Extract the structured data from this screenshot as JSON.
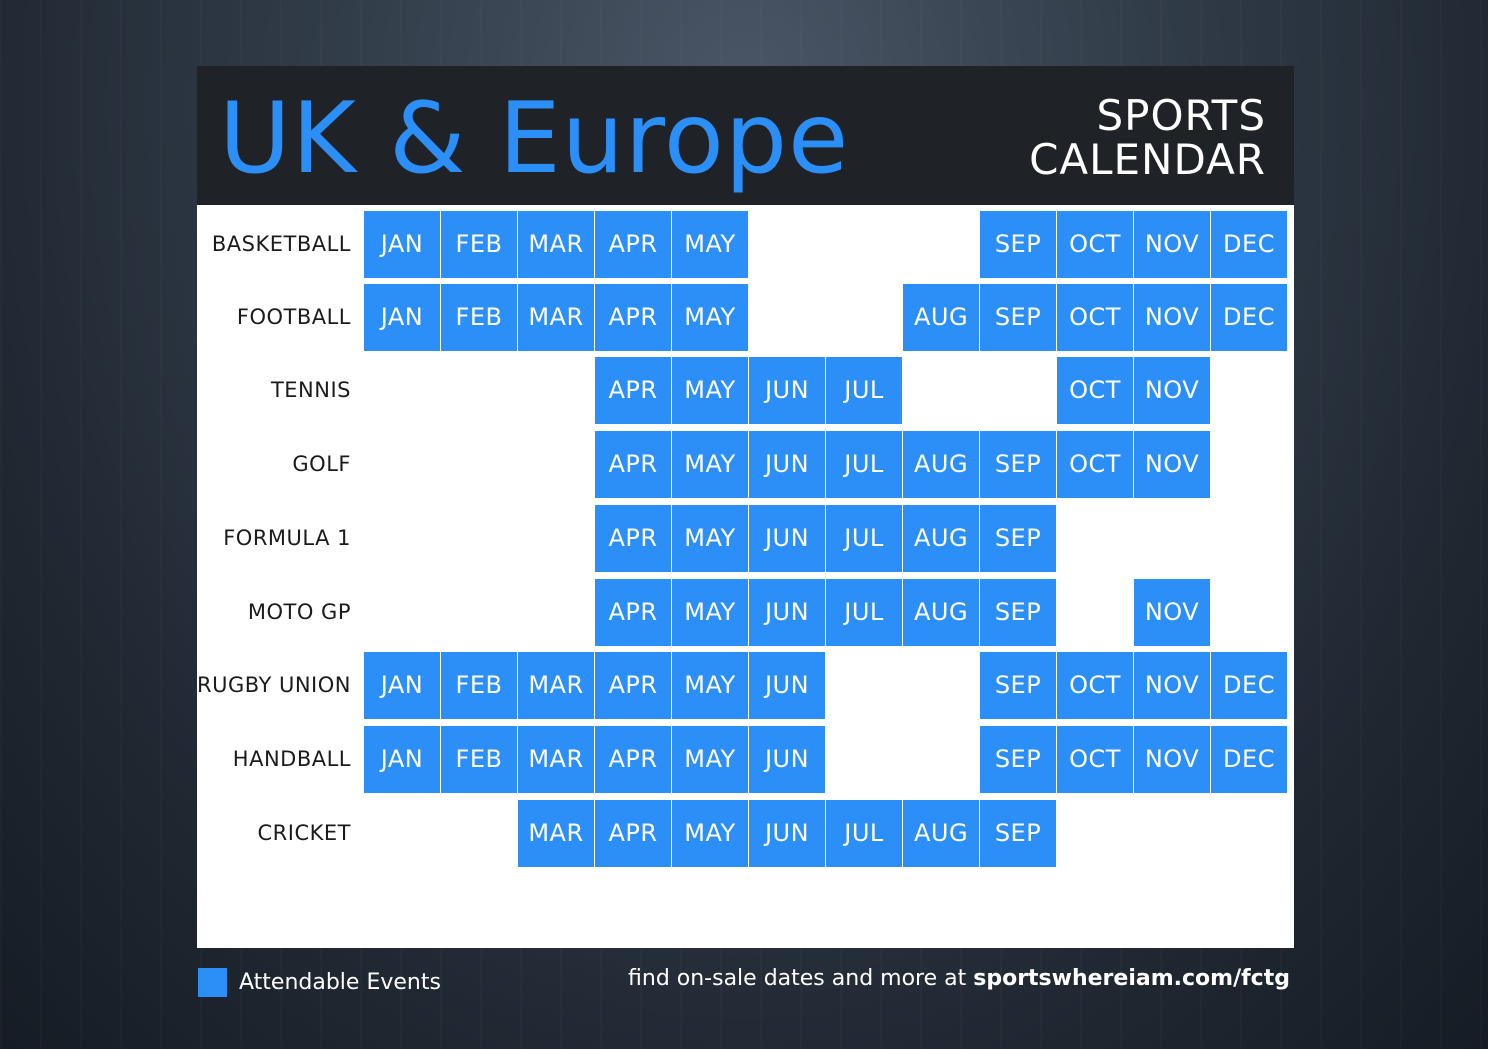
{
  "header": {
    "title": "UK & Europe",
    "subtitle_line1": "SPORTS",
    "subtitle_line2": "CALENDAR"
  },
  "months": [
    "JAN",
    "FEB",
    "MAR",
    "APR",
    "MAY",
    "JUN",
    "JUL",
    "AUG",
    "SEP",
    "OCT",
    "NOV",
    "DEC"
  ],
  "colors": {
    "accent": "#2b8ff7",
    "header_bg": "#1f2227"
  },
  "sports": [
    {
      "name": "BASKETBALL",
      "months": [
        "JAN",
        "FEB",
        "MAR",
        "APR",
        "MAY",
        "SEP",
        "OCT",
        "NOV",
        "DEC"
      ]
    },
    {
      "name": "FOOTBALL",
      "months": [
        "JAN",
        "FEB",
        "MAR",
        "APR",
        "MAY",
        "AUG",
        "SEP",
        "OCT",
        "NOV",
        "DEC"
      ]
    },
    {
      "name": "TENNIS",
      "months": [
        "APR",
        "MAY",
        "JUN",
        "JUL",
        "OCT",
        "NOV"
      ]
    },
    {
      "name": "GOLF",
      "months": [
        "APR",
        "MAY",
        "JUN",
        "JUL",
        "AUG",
        "SEP",
        "OCT",
        "NOV"
      ]
    },
    {
      "name": "FORMULA 1",
      "months": [
        "APR",
        "MAY",
        "JUN",
        "JUL",
        "AUG",
        "SEP"
      ]
    },
    {
      "name": "MOTO GP",
      "months": [
        "APR",
        "MAY",
        "JUN",
        "JUL",
        "AUG",
        "SEP",
        "NOV"
      ]
    },
    {
      "name": "RUGBY UNION",
      "months": [
        "JAN",
        "FEB",
        "MAR",
        "APR",
        "MAY",
        "JUN",
        "SEP",
        "OCT",
        "NOV",
        "DEC"
      ]
    },
    {
      "name": "HANDBALL",
      "months": [
        "JAN",
        "FEB",
        "MAR",
        "APR",
        "MAY",
        "JUN",
        "SEP",
        "OCT",
        "NOV",
        "DEC"
      ]
    },
    {
      "name": "CRICKET",
      "months": [
        "MAR",
        "APR",
        "MAY",
        "JUN",
        "JUL",
        "AUG",
        "SEP"
      ]
    }
  ],
  "legend": {
    "label": "Attendable Events"
  },
  "footer": {
    "text": "find on-sale dates and more at ",
    "link": "sportswhereiam.com/fctg"
  }
}
